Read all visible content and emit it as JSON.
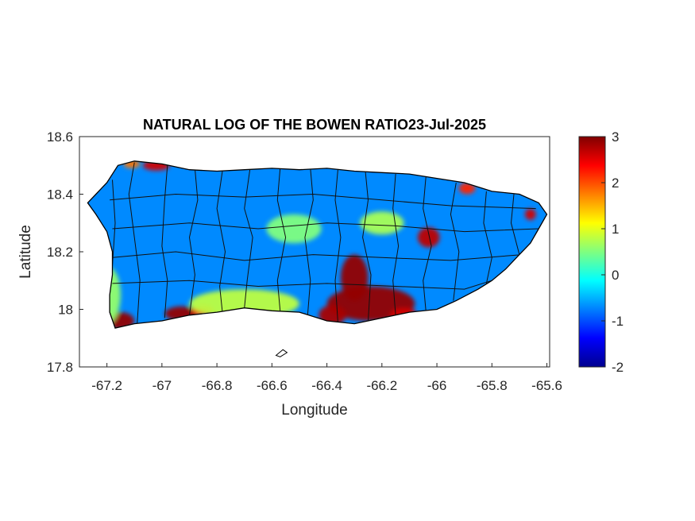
{
  "figure": {
    "title": "NATURAL LOG OF THE BOWEN RATIO23-Jul-2025",
    "xlabel": "Longitude",
    "ylabel": "Latitude"
  },
  "chart_data": {
    "type": "heatmap",
    "title": "NATURAL LOG OF THE BOWEN RATIO23-Jul-2025",
    "xlabel": "Longitude",
    "ylabel": "Latitude",
    "xlim": [
      -67.3,
      -65.59
    ],
    "ylim": [
      17.8,
      18.6
    ],
    "xticks": [
      -67.2,
      -67,
      -66.8,
      -66.6,
      -66.4,
      -66.2,
      -66,
      -65.8,
      -65.6
    ],
    "xtick_labels": [
      "-67.2",
      "-67",
      "-66.8",
      "-66.6",
      "-66.4",
      "-66.2",
      "-66",
      "-65.8",
      "-65.6"
    ],
    "yticks": [
      17.8,
      18,
      18.2,
      18.4,
      18.6
    ],
    "ytick_labels": [
      "17.8",
      "18",
      "18.2",
      "18.4",
      "18.6"
    ],
    "colorbar": {
      "colormap": "jet",
      "limits": [
        -2,
        3
      ],
      "ticks": [
        -2,
        -1,
        0,
        1,
        2,
        3
      ],
      "tick_labels": [
        "-2",
        "-1",
        "0",
        "1",
        "2",
        "3"
      ]
    },
    "grid": false,
    "region_boundary": [
      [
        -67.27,
        18.37
      ],
      [
        -67.24,
        18.4
      ],
      [
        -67.2,
        18.44
      ],
      [
        -67.16,
        18.5
      ],
      [
        -67.1,
        18.515
      ],
      [
        -67.0,
        18.505
      ],
      [
        -66.9,
        18.485
      ],
      [
        -66.8,
        18.48
      ],
      [
        -66.7,
        18.485
      ],
      [
        -66.6,
        18.49
      ],
      [
        -66.5,
        18.485
      ],
      [
        -66.4,
        18.49
      ],
      [
        -66.3,
        18.48
      ],
      [
        -66.2,
        18.475
      ],
      [
        -66.1,
        18.47
      ],
      [
        -66.0,
        18.455
      ],
      [
        -65.9,
        18.44
      ],
      [
        -65.8,
        18.41
      ],
      [
        -65.7,
        18.4
      ],
      [
        -65.63,
        18.37
      ],
      [
        -65.6,
        18.33
      ],
      [
        -65.63,
        18.28
      ],
      [
        -65.66,
        18.23
      ],
      [
        -65.7,
        18.19
      ],
      [
        -65.75,
        18.14
      ],
      [
        -65.8,
        18.1
      ],
      [
        -65.85,
        18.07
      ],
      [
        -65.93,
        18.03
      ],
      [
        -66.0,
        18.0
      ],
      [
        -66.1,
        17.99
      ],
      [
        -66.2,
        17.97
      ],
      [
        -66.3,
        17.95
      ],
      [
        -66.4,
        17.96
      ],
      [
        -66.5,
        17.99
      ],
      [
        -66.6,
        17.995
      ],
      [
        -66.7,
        18.005
      ],
      [
        -66.8,
        17.99
      ],
      [
        -66.9,
        17.98
      ],
      [
        -67.0,
        17.96
      ],
      [
        -67.1,
        17.95
      ],
      [
        -67.17,
        17.935
      ],
      [
        -67.19,
        17.99
      ],
      [
        -67.19,
        18.05
      ],
      [
        -67.18,
        18.12
      ],
      [
        -67.18,
        18.2
      ],
      [
        -67.2,
        18.27
      ],
      [
        -67.24,
        18.33
      ],
      [
        -67.27,
        18.37
      ]
    ],
    "islands": [
      [
        [
          -66.585,
          17.84
        ],
        [
          -66.56,
          17.86
        ],
        [
          -66.545,
          17.85
        ],
        [
          -66.57,
          17.835
        ]
      ]
    ],
    "anomalies": [
      {
        "lon": -66.24,
        "lat": 18.02,
        "rx": 0.16,
        "ry": 0.06,
        "value": 2.9
      },
      {
        "lon": -66.3,
        "lat": 18.11,
        "rx": 0.05,
        "ry": 0.08,
        "value": 2.9
      },
      {
        "lon": -66.38,
        "lat": 17.98,
        "rx": 0.05,
        "ry": 0.035,
        "value": 2.8
      },
      {
        "lon": -66.12,
        "lat": 17.98,
        "rx": 0.05,
        "ry": 0.025,
        "value": 2.6
      },
      {
        "lon": -66.03,
        "lat": 18.25,
        "rx": 0.04,
        "ry": 0.035,
        "value": 2.7
      },
      {
        "lon": -67.15,
        "lat": 17.96,
        "rx": 0.05,
        "ry": 0.03,
        "value": 2.9
      },
      {
        "lon": -66.93,
        "lat": 17.985,
        "rx": 0.06,
        "ry": 0.025,
        "value": 2.9
      },
      {
        "lon": -66.85,
        "lat": 17.995,
        "rx": 0.04,
        "ry": 0.02,
        "value": 2.4
      },
      {
        "lon": -67.02,
        "lat": 18.5,
        "rx": 0.05,
        "ry": 0.018,
        "value": 2.6
      },
      {
        "lon": -67.11,
        "lat": 18.505,
        "rx": 0.03,
        "ry": 0.015,
        "value": 1.8
      },
      {
        "lon": -65.89,
        "lat": 18.42,
        "rx": 0.03,
        "ry": 0.02,
        "value": 2.2
      },
      {
        "lon": -65.66,
        "lat": 18.33,
        "rx": 0.02,
        "ry": 0.02,
        "value": 2.6
      },
      {
        "lon": -66.52,
        "lat": 18.28,
        "rx": 0.1,
        "ry": 0.05,
        "value": 0.5
      },
      {
        "lon": -66.2,
        "lat": 18.3,
        "rx": 0.08,
        "ry": 0.04,
        "value": 0.7
      },
      {
        "lon": -67.2,
        "lat": 18.05,
        "rx": 0.05,
        "ry": 0.1,
        "value": 0.6
      },
      {
        "lon": -66.7,
        "lat": 18.02,
        "rx": 0.2,
        "ry": 0.05,
        "value": 0.8
      }
    ],
    "municipal_boundaries": [
      [
        [
          -67.18,
          18.45
        ],
        [
          -67.17,
          18.3
        ],
        [
          -67.18,
          18.15
        ],
        [
          -67.19,
          18.05
        ]
      ],
      [
        [
          -67.1,
          18.51
        ],
        [
          -67.12,
          18.4
        ],
        [
          -67.1,
          18.25
        ],
        [
          -67.08,
          18.1
        ],
        [
          -67.09,
          17.95
        ]
      ],
      [
        [
          -66.98,
          18.5
        ],
        [
          -66.99,
          18.38
        ],
        [
          -67.0,
          18.22
        ],
        [
          -66.98,
          18.1
        ],
        [
          -66.99,
          17.97
        ]
      ],
      [
        [
          -66.88,
          18.49
        ],
        [
          -66.87,
          18.38
        ],
        [
          -66.9,
          18.25
        ],
        [
          -66.88,
          18.12
        ],
        [
          -66.9,
          17.98
        ]
      ],
      [
        [
          -66.78,
          18.48
        ],
        [
          -66.8,
          18.35
        ],
        [
          -66.77,
          18.2
        ],
        [
          -66.79,
          18.08
        ],
        [
          -66.78,
          17.99
        ]
      ],
      [
        [
          -66.68,
          18.485
        ],
        [
          -66.7,
          18.35
        ],
        [
          -66.67,
          18.25
        ],
        [
          -66.69,
          18.1
        ],
        [
          -66.7,
          18.005
        ]
      ],
      [
        [
          -66.57,
          18.49
        ],
        [
          -66.58,
          18.38
        ],
        [
          -66.55,
          18.25
        ],
        [
          -66.58,
          18.1
        ],
        [
          -66.57,
          17.995
        ]
      ],
      [
        [
          -66.46,
          18.49
        ],
        [
          -66.45,
          18.38
        ],
        [
          -66.48,
          18.25
        ],
        [
          -66.46,
          18.1
        ],
        [
          -66.47,
          17.98
        ]
      ],
      [
        [
          -66.36,
          18.485
        ],
        [
          -66.37,
          18.38
        ],
        [
          -66.35,
          18.25
        ],
        [
          -66.37,
          18.1
        ],
        [
          -66.36,
          17.955
        ]
      ],
      [
        [
          -66.26,
          18.48
        ],
        [
          -66.25,
          18.38
        ],
        [
          -66.27,
          18.25
        ],
        [
          -66.24,
          18.12
        ],
        [
          -66.25,
          17.96
        ]
      ],
      [
        [
          -66.15,
          18.47
        ],
        [
          -66.16,
          18.35
        ],
        [
          -66.14,
          18.22
        ],
        [
          -66.16,
          18.1
        ],
        [
          -66.15,
          17.98
        ]
      ],
      [
        [
          -66.04,
          18.46
        ],
        [
          -66.05,
          18.35
        ],
        [
          -66.02,
          18.22
        ],
        [
          -66.05,
          18.1
        ],
        [
          -66.04,
          17.995
        ]
      ],
      [
        [
          -65.93,
          18.44
        ],
        [
          -65.95,
          18.33
        ],
        [
          -65.92,
          18.2
        ],
        [
          -65.94,
          18.03
        ]
      ],
      [
        [
          -65.82,
          18.41
        ],
        [
          -65.83,
          18.3
        ],
        [
          -65.8,
          18.18
        ],
        [
          -65.82,
          18.09
        ]
      ],
      [
        [
          -65.72,
          18.4
        ],
        [
          -65.73,
          18.3
        ],
        [
          -65.7,
          18.19
        ]
      ],
      [
        [
          -67.19,
          18.38
        ],
        [
          -66.95,
          18.4
        ],
        [
          -66.7,
          18.39
        ],
        [
          -66.45,
          18.4
        ],
        [
          -66.2,
          18.38
        ],
        [
          -65.95,
          18.36
        ],
        [
          -65.64,
          18.35
        ]
      ],
      [
        [
          -67.18,
          18.28
        ],
        [
          -66.9,
          18.3
        ],
        [
          -66.65,
          18.28
        ],
        [
          -66.4,
          18.3
        ],
        [
          -66.15,
          18.29
        ],
        [
          -65.9,
          18.27
        ],
        [
          -65.63,
          18.28
        ]
      ],
      [
        [
          -67.18,
          18.18
        ],
        [
          -66.95,
          18.2
        ],
        [
          -66.7,
          18.17
        ],
        [
          -66.45,
          18.19
        ],
        [
          -66.2,
          18.18
        ],
        [
          -65.95,
          18.17
        ],
        [
          -65.69,
          18.19
        ]
      ],
      [
        [
          -67.18,
          18.09
        ],
        [
          -66.9,
          18.1
        ],
        [
          -66.65,
          18.08
        ],
        [
          -66.4,
          18.09
        ],
        [
          -66.15,
          18.08
        ],
        [
          -65.9,
          18.07
        ],
        [
          -65.8,
          18.1
        ]
      ]
    ]
  }
}
